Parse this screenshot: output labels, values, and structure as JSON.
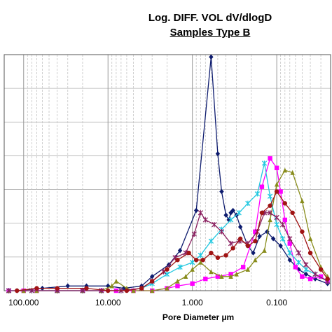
{
  "chart_data": {
    "type": "line",
    "title": "Log. DIFF. VOL dV/dlogD",
    "subtitle": "Samples Type B",
    "xlabel": "Pore Diameter µm",
    "x_scale": "log",
    "x_reversed": true,
    "xlim": [
      170,
      0.023
    ],
    "ylim": [
      0,
      1
    ],
    "x_ticks": [
      {
        "value": 100,
        "label": "100.000"
      },
      {
        "value": 10,
        "label": "10.000"
      },
      {
        "value": 1,
        "label": "1.000"
      },
      {
        "value": 0.1,
        "label": "0.100"
      }
    ],
    "grid": {
      "vertical_minor": "dashed",
      "horizontal": "solid"
    },
    "series": [
      {
        "color": "#0d1b6e",
        "marker": "diamond",
        "x": [
          120,
          60,
          30,
          18,
          10,
          6.5,
          4,
          3,
          1.9,
          1.4,
          0.9,
          0.6,
          0.5,
          0.45,
          0.4,
          0.37,
          0.35,
          0.33,
          0.3,
          0.27,
          0.22,
          0.19,
          0.16,
          0.13,
          0.11,
          0.09,
          0.07,
          0.055,
          0.045,
          0.035,
          0.025
        ],
        "values": [
          0,
          0.01,
          0.02,
          0.02,
          0.02,
          0.01,
          0.02,
          0.06,
          0.11,
          0.17,
          0.34,
          0.99,
          0.58,
          0.42,
          0.32,
          0.3,
          0.33,
          0.34,
          0.32,
          0.27,
          0.19,
          0.16,
          0.23,
          0.25,
          0.22,
          0.19,
          0.13,
          0.09,
          0.07,
          0.05,
          0.03
        ]
      },
      {
        "color": "#ff00ff",
        "marker": "square",
        "x": [
          150,
          100,
          70,
          40,
          20,
          12,
          8,
          5,
          3,
          2,
          1.5,
          1,
          0.7,
          0.5,
          0.35,
          0.25,
          0.18,
          0.15,
          0.12,
          0.1,
          0.09,
          0.08,
          0.07,
          0.06,
          0.05,
          0.04,
          0.03,
          0.025
        ],
        "values": [
          0,
          0,
          0,
          0,
          0,
          0,
          0,
          0,
          0,
          0.01,
          0.02,
          0.03,
          0.05,
          0.06,
          0.07,
          0.1,
          0.25,
          0.44,
          0.56,
          0.52,
          0.42,
          0.3,
          0.2,
          0.1,
          0.06,
          0.05,
          0.06,
          0.04
        ]
      },
      {
        "color": "#888c1c",
        "marker": "triangle",
        "x": [
          150,
          100,
          70,
          40,
          20,
          12,
          9,
          8,
          6,
          5,
          3,
          2,
          1.5,
          1.2,
          1,
          0.8,
          0.6,
          0.45,
          0.35,
          0.3,
          0.22,
          0.18,
          0.14,
          0.12,
          0.1,
          0.08,
          0.065,
          0.05,
          0.04,
          0.03,
          0.025
        ],
        "values": [
          0,
          0,
          0,
          0,
          0,
          0,
          0.02,
          0.04,
          0.01,
          0,
          0,
          0.01,
          0.04,
          0.06,
          0.09,
          0.12,
          0.08,
          0.06,
          0.06,
          0.07,
          0.09,
          0.13,
          0.17,
          0.3,
          0.45,
          0.51,
          0.5,
          0.38,
          0.22,
          0.1,
          0.06
        ]
      },
      {
        "color": "#22c8e0",
        "marker": "asterisk",
        "x": [
          150,
          80,
          40,
          20,
          12,
          7,
          4,
          3,
          2,
          1.4,
          1,
          0.8,
          0.6,
          0.45,
          0.35,
          0.28,
          0.22,
          0.17,
          0.14,
          0.12,
          0.1,
          0.085,
          0.07,
          0.055,
          0.045,
          0.035,
          0.025
        ],
        "values": [
          0,
          0,
          0,
          0,
          0,
          0,
          0.01,
          0.03,
          0.07,
          0.1,
          0.12,
          0.15,
          0.21,
          0.26,
          0.3,
          0.33,
          0.37,
          0.41,
          0.54,
          0.4,
          0.28,
          0.22,
          0.16,
          0.12,
          0.09,
          0.07,
          0.04
        ]
      },
      {
        "color": "#8a2060",
        "marker": "asterisk",
        "x": [
          150,
          80,
          40,
          20,
          12,
          7,
          4,
          3,
          2.2,
          1.6,
          1.2,
          0.95,
          0.8,
          0.7,
          0.55,
          0.45,
          0.35,
          0.28,
          0.22,
          0.17,
          0.14,
          0.12,
          0.1,
          0.085,
          0.07,
          0.055,
          0.045,
          0.035,
          0.025
        ],
        "values": [
          0,
          0,
          0,
          0,
          0,
          0,
          0.01,
          0.04,
          0.08,
          0.14,
          0.16,
          0.24,
          0.33,
          0.3,
          0.28,
          0.25,
          0.2,
          0.21,
          0.2,
          0.25,
          0.33,
          0.33,
          0.31,
          0.28,
          0.22,
          0.16,
          0.11,
          0.07,
          0.04
        ]
      },
      {
        "color": "#a01414",
        "marker": "circle",
        "x": [
          120,
          70,
          40,
          18,
          10,
          6,
          4,
          3,
          2,
          1.5,
          1.1,
          0.9,
          0.75,
          0.6,
          0.5,
          0.4,
          0.33,
          0.27,
          0.22,
          0.18,
          0.15,
          0.12,
          0.1,
          0.08,
          0.065,
          0.05,
          0.04,
          0.03,
          0.025
        ],
        "values": [
          0,
          0.01,
          0.01,
          0.01,
          0,
          0,
          0.01,
          0.04,
          0.09,
          0.13,
          0.16,
          0.13,
          0.13,
          0.16,
          0.14,
          0.15,
          0.18,
          0.22,
          0.19,
          0.21,
          0.33,
          0.36,
          0.42,
          0.37,
          0.33,
          0.25,
          0.16,
          0.09,
          0.05
        ]
      }
    ]
  }
}
